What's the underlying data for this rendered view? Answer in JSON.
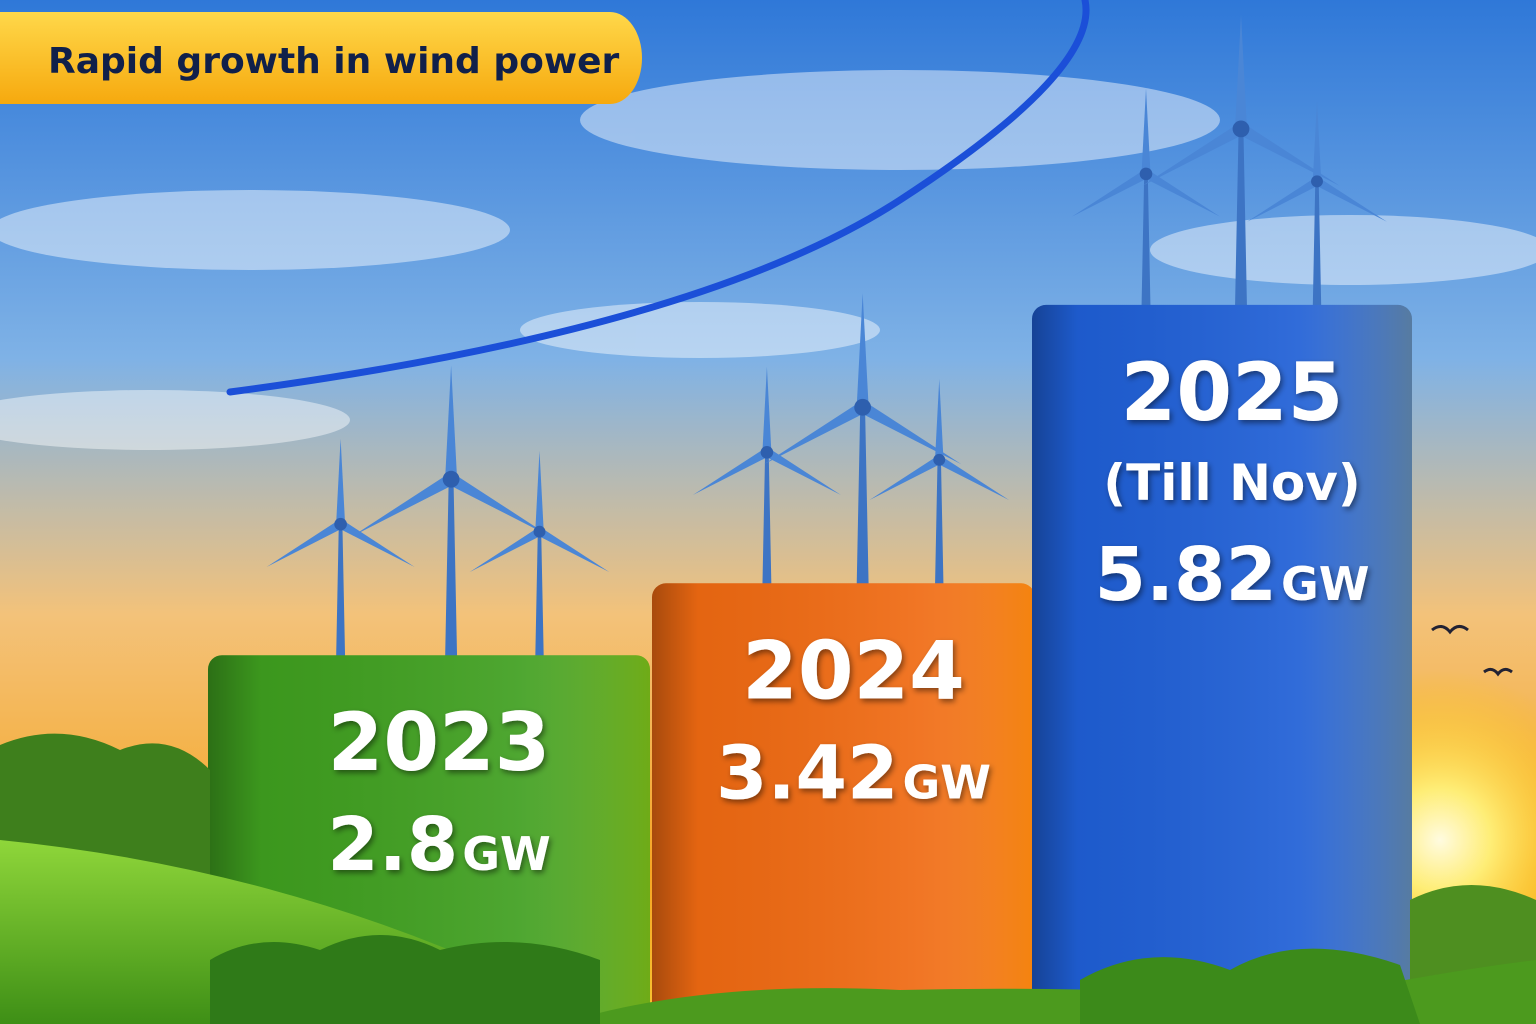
{
  "chart_data": {
    "type": "bar",
    "title": "Rapid growth in wind power",
    "categories": [
      "2023",
      "2024",
      "2025"
    ],
    "annotation": "(Till Nov)",
    "values": [
      2.8,
      3.42,
      5.82
    ],
    "unit": "GW",
    "colors": [
      "#3f9f1f",
      "#f06a12",
      "#1f5fd6"
    ]
  }
}
